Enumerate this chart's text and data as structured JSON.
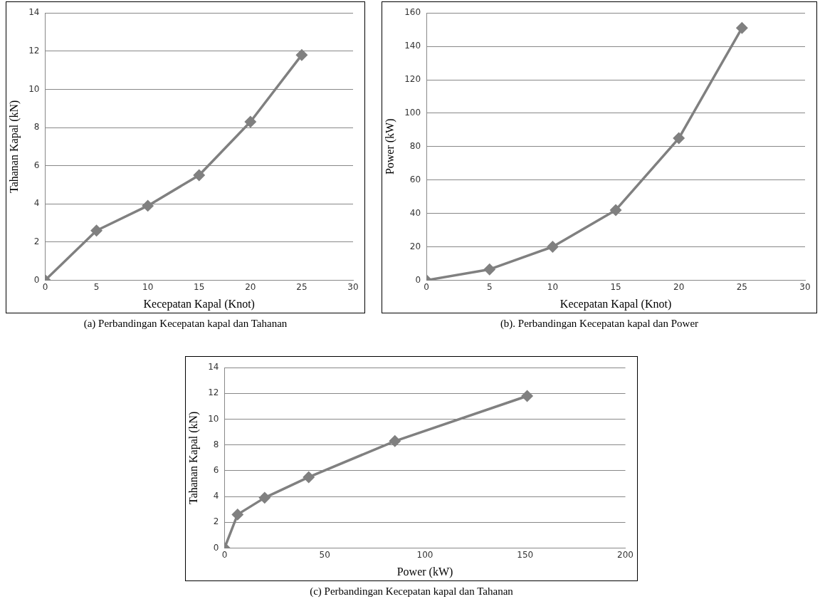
{
  "chart_data": [
    {
      "type": "line",
      "xlabel": "Kecepatan Kapal (Knot)",
      "ylabel": "Tahanan Kapal (kN)",
      "annotations": [
        "(a)  Perbandingan Kecepatan kapal dan Tahanan"
      ],
      "x": [
        0,
        5,
        10,
        15,
        20,
        25
      ],
      "series": [
        {
          "color": "#808080",
          "values": [
            0,
            2.6,
            3.9,
            5.5,
            8.3,
            11.8
          ]
        }
      ],
      "xlim": [
        0,
        30
      ],
      "xticks": [
        0,
        5,
        10,
        15,
        20,
        25,
        30
      ],
      "ylim": [
        0,
        14
      ],
      "yticks": [
        0,
        2,
        4,
        6,
        8,
        10,
        12,
        14
      ],
      "grid": "y",
      "legend": false,
      "marker": "diamond",
      "line_style": "solid"
    },
    {
      "type": "line",
      "xlabel": "Kecepatan Kapal (Knot)",
      "ylabel": "Power (kW)",
      "annotations": [
        "(b). Perbandingan Kecepatan kapal dan Power"
      ],
      "x": [
        0,
        5,
        10,
        15,
        20,
        25
      ],
      "series": [
        {
          "color": "#808080",
          "values": [
            0,
            6.5,
            20,
            42,
            85,
            151
          ]
        }
      ],
      "xlim": [
        0,
        30
      ],
      "xticks": [
        0,
        5,
        10,
        15,
        20,
        25,
        30
      ],
      "ylim": [
        0,
        160
      ],
      "yticks": [
        0,
        20,
        40,
        60,
        80,
        100,
        120,
        140,
        160
      ],
      "grid": "y",
      "legend": false,
      "marker": "diamond",
      "line_style": "solid"
    },
    {
      "type": "line",
      "xlabel": "Power (kW)",
      "ylabel": "Tahanan Kapal (kN)",
      "annotations": [
        "(c) Perbandingan Kecepatan kapal dan Tahanan"
      ],
      "x": [
        0,
        6.5,
        20,
        42,
        85,
        151
      ],
      "series": [
        {
          "color": "#808080",
          "values": [
            0,
            2.6,
            3.9,
            5.5,
            8.3,
            11.8
          ]
        }
      ],
      "xlim": [
        0,
        200
      ],
      "xticks": [
        0,
        50,
        100,
        150,
        200
      ],
      "ylim": [
        0,
        14
      ],
      "yticks": [
        0,
        2,
        4,
        6,
        8,
        10,
        12,
        14
      ],
      "grid": "y",
      "legend": false,
      "marker": "diamond",
      "line_style": "solid"
    }
  ]
}
